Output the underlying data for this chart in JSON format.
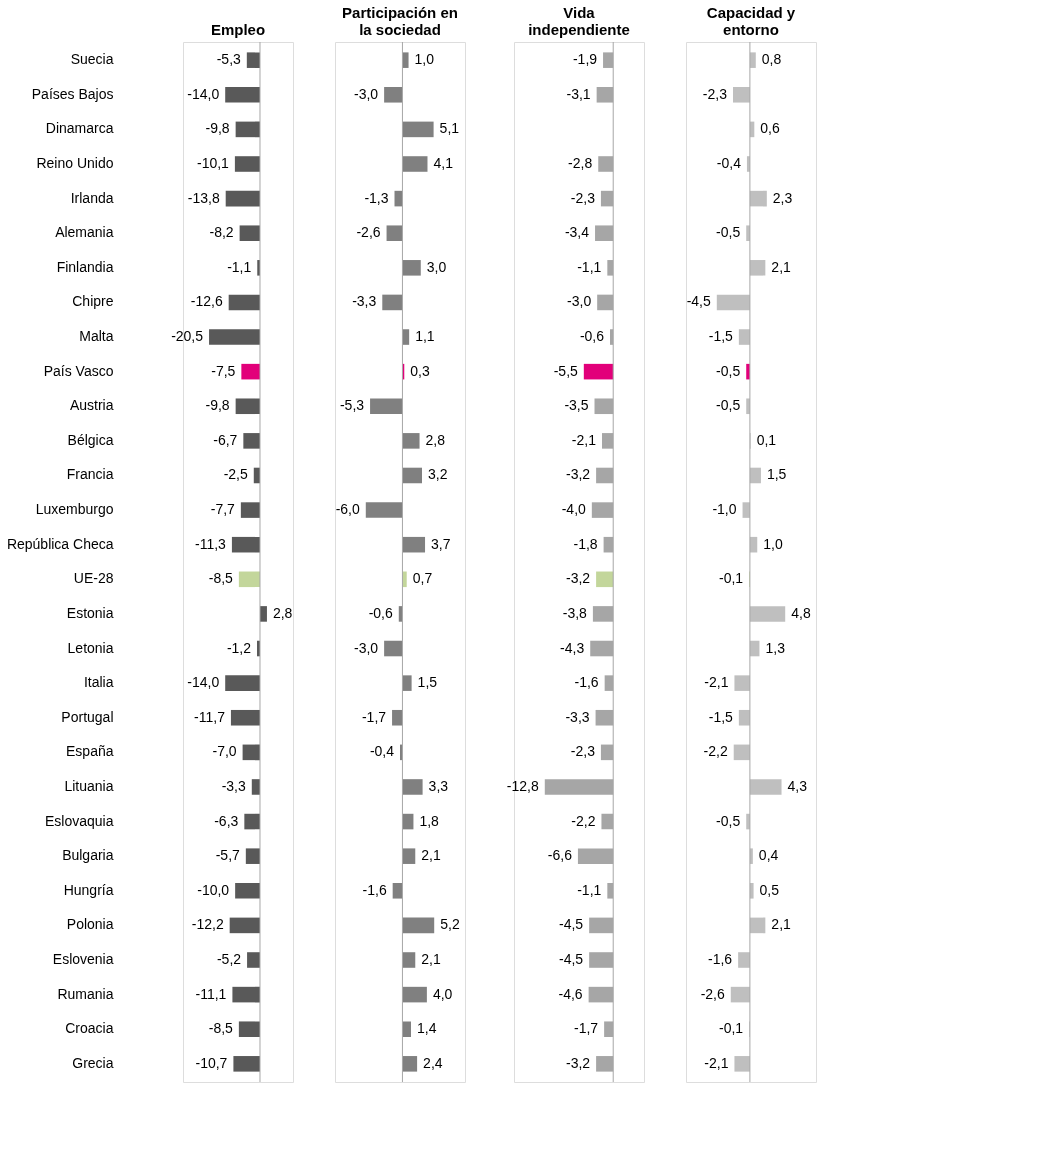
{
  "chart_data": [
    {
      "type": "bar",
      "orientation": "horizontal",
      "title": "Empleo",
      "data_labels": true,
      "tick_labels": "y",
      "categories": [
        "Suecia",
        "Países Bajos",
        "Dinamarca",
        "Reino Unido",
        "Irlanda",
        "Alemania",
        "Finlandia",
        "Chipre",
        "Malta",
        "País Vasco",
        "Austria",
        "Bélgica",
        "Francia",
        "Luxemburgo",
        "República Checa",
        "UE-28",
        "Estonia",
        "Letonia",
        "Italia",
        "Portugal",
        "España",
        "Lituania",
        "Eslovaquia",
        "Bulgaria",
        "Hungría",
        "Polonia",
        "Eslovenia",
        "Rumania",
        "Croacia",
        "Grecia"
      ],
      "values": [
        -5.3,
        -14.0,
        -9.8,
        -10.1,
        -13.8,
        -8.2,
        -1.1,
        -12.6,
        -20.5,
        -7.5,
        -9.8,
        -6.7,
        -2.5,
        -7.7,
        -11.3,
        -8.5,
        2.8,
        -1.2,
        -14.0,
        -11.7,
        -7.0,
        -3.3,
        -6.3,
        -5.7,
        -10.0,
        -12.2,
        -5.2,
        -11.1,
        -8.5,
        -10.7
      ],
      "value_labels": [
        "-5,3",
        "-14,0",
        "-9,8",
        "-10,1",
        "-13,8",
        "-8,2",
        "-1,1",
        "-12,6",
        "-20,5",
        "-7,5",
        "-9,8",
        "-6,7",
        "-2,5",
        "-7,7",
        "-11,3",
        "-8,5",
        "2,8",
        "-1,2",
        "-14,0",
        "-11,7",
        "-7,0",
        "-3,3",
        "-6,3",
        "-5,7",
        "-10,0",
        "-12,2",
        "-5,2",
        "-11,1",
        "-8,5",
        "-10,7"
      ],
      "colors": [
        "#595959",
        "#595959",
        "#595959",
        "#595959",
        "#595959",
        "#595959",
        "#595959",
        "#595959",
        "#595959",
        "#e2007a",
        "#595959",
        "#595959",
        "#595959",
        "#595959",
        "#595959",
        "#c3d69b",
        "#595959",
        "#595959",
        "#595959",
        "#595959",
        "#595959",
        "#595959",
        "#595959",
        "#595959",
        "#595959",
        "#595959",
        "#595959",
        "#595959",
        "#595959",
        "#595959"
      ]
    },
    {
      "type": "bar",
      "orientation": "horizontal",
      "title": "Participación en\nla sociedad",
      "data_labels": true,
      "tick_labels": false,
      "values": [
        1.0,
        -3.0,
        5.1,
        4.1,
        -1.3,
        -2.6,
        3.0,
        -3.3,
        1.1,
        0.3,
        -5.3,
        2.8,
        3.2,
        -6.0,
        3.7,
        0.7,
        -0.6,
        -3.0,
        1.5,
        -1.7,
        -0.4,
        3.3,
        1.8,
        2.1,
        -1.6,
        5.2,
        2.1,
        4.0,
        1.4,
        2.4
      ],
      "value_labels": [
        "1,0",
        "-3,0",
        "5,1",
        "4,1",
        "-1,3",
        "-2,6",
        "3,0",
        "-3,3",
        "1,1",
        "0,3",
        "-5,3",
        "2,8",
        "3,2",
        "-6,0",
        "3,7",
        "0,7",
        "-0,6",
        "-3,0",
        "1,5",
        "-1,7",
        "-0,4",
        "3,3",
        "1,8",
        "2,1",
        "-1,6",
        "5,2",
        "2,1",
        "4,0",
        "1,4",
        "2,4"
      ],
      "colors": [
        "#808080",
        "#808080",
        "#808080",
        "#808080",
        "#808080",
        "#808080",
        "#808080",
        "#808080",
        "#808080",
        "#e2007a",
        "#808080",
        "#808080",
        "#808080",
        "#808080",
        "#808080",
        "#c3d69b",
        "#808080",
        "#808080",
        "#808080",
        "#808080",
        "#808080",
        "#808080",
        "#808080",
        "#808080",
        "#808080",
        "#808080",
        "#808080",
        "#808080",
        "#808080",
        "#808080"
      ]
    },
    {
      "type": "bar",
      "orientation": "horizontal",
      "title": "Vida\nindependiente",
      "data_labels": true,
      "tick_labels": false,
      "values": [
        -1.9,
        -3.1,
        null,
        -2.8,
        -2.3,
        -3.4,
        -1.1,
        -3.0,
        -0.6,
        -5.5,
        -3.5,
        -2.1,
        -3.2,
        -4.0,
        -1.8,
        -3.2,
        -3.8,
        -4.3,
        -1.6,
        -3.3,
        -2.3,
        -12.8,
        -2.2,
        -6.6,
        -1.1,
        -4.5,
        -4.5,
        -4.6,
        -1.7,
        -3.2
      ],
      "value_labels": [
        "-1,9",
        "-3,1",
        null,
        "-2,8",
        "-2,3",
        "-3,4",
        "-1,1",
        "-3,0",
        "-0,6",
        "-5,5",
        "-3,5",
        "-2,1",
        "-3,2",
        "-4,0",
        "-1,8",
        "-3,2",
        "-3,8",
        "-4,3",
        "-1,6",
        "-3,3",
        "-2,3",
        "-12,8",
        "-2,2",
        "-6,6",
        "-1,1",
        "-4,5",
        "-4,5",
        "-4,6",
        "-1,7",
        "-3,2"
      ],
      "colors": [
        "#a6a6a6",
        "#a6a6a6",
        "#a6a6a6",
        "#a6a6a6",
        "#a6a6a6",
        "#a6a6a6",
        "#a6a6a6",
        "#a6a6a6",
        "#a6a6a6",
        "#e2007a",
        "#a6a6a6",
        "#a6a6a6",
        "#a6a6a6",
        "#a6a6a6",
        "#a6a6a6",
        "#c3d69b",
        "#a6a6a6",
        "#a6a6a6",
        "#a6a6a6",
        "#a6a6a6",
        "#a6a6a6",
        "#a6a6a6",
        "#a6a6a6",
        "#a6a6a6",
        "#a6a6a6",
        "#a6a6a6",
        "#a6a6a6",
        "#a6a6a6",
        "#a6a6a6",
        "#a6a6a6"
      ]
    },
    {
      "type": "bar",
      "orientation": "horizontal",
      "title": "Capacidad y\nentorno",
      "data_labels": true,
      "tick_labels": false,
      "values": [
        0.8,
        -2.3,
        0.6,
        -0.4,
        2.3,
        -0.5,
        2.1,
        -4.5,
        -1.5,
        -0.5,
        -0.5,
        0.1,
        1.5,
        -1.0,
        1.0,
        -0.1,
        4.8,
        1.3,
        -2.1,
        -1.5,
        -2.2,
        4.3,
        -0.5,
        0.4,
        0.5,
        2.1,
        -1.6,
        -2.6,
        -0.1,
        -2.1
      ],
      "value_labels": [
        "0,8",
        "-2,3",
        "0,6",
        "-0,4",
        "2,3",
        "-0,5",
        "2,1",
        "-4,5",
        "-1,5",
        "-0,5",
        "-0,5",
        "0,1",
        "1,5",
        "-1,0",
        "1,0",
        "-0,1",
        "4,8",
        "1,3",
        "-2,1",
        "-1,5",
        "-2,2",
        "4,3",
        "-0,5",
        "0,4",
        "0,5",
        "2,1",
        "-1,6",
        "-2,6",
        "-0,1",
        "-2,1"
      ],
      "colors": [
        "#bfbfbf",
        "#bfbfbf",
        "#bfbfbf",
        "#bfbfbf",
        "#bfbfbf",
        "#bfbfbf",
        "#bfbfbf",
        "#bfbfbf",
        "#bfbfbf",
        "#e2007a",
        "#bfbfbf",
        "#bfbfbf",
        "#bfbfbf",
        "#bfbfbf",
        "#bfbfbf",
        "#c3d69b",
        "#bfbfbf",
        "#bfbfbf",
        "#bfbfbf",
        "#bfbfbf",
        "#bfbfbf",
        "#bfbfbf",
        "#bfbfbf",
        "#bfbfbf",
        "#bfbfbf",
        "#bfbfbf",
        "#bfbfbf",
        "#bfbfbf",
        "#bfbfbf",
        "#bfbfbf"
      ]
    }
  ]
}
